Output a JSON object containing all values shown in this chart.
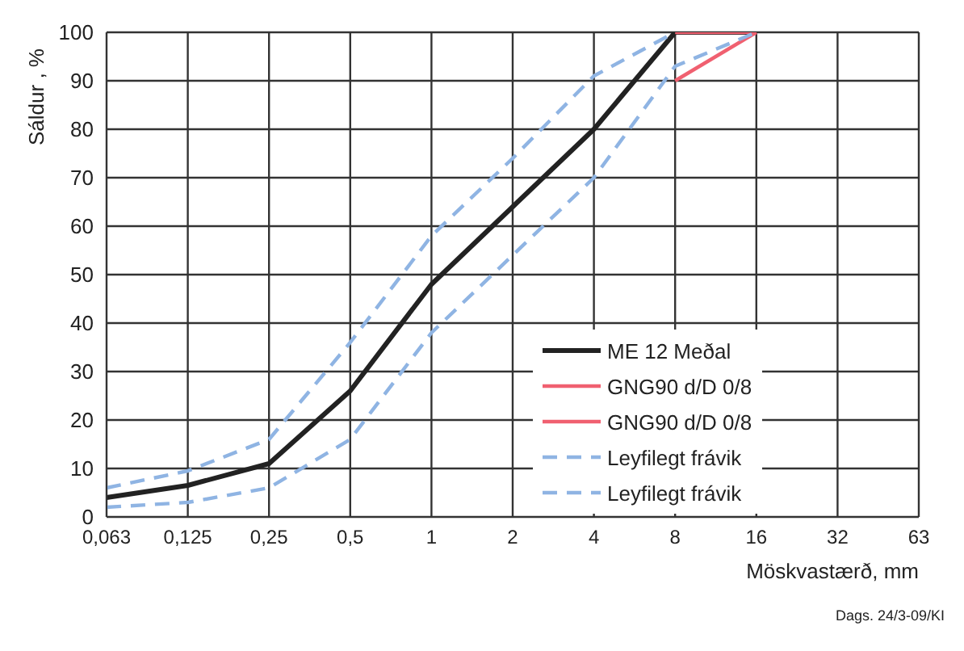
{
  "chart_data": {
    "type": "line",
    "xlabel": "Möskvastærð, mm",
    "ylabel": "Sáldur , %",
    "categories": [
      "0,063",
      "0,125",
      "0,25",
      "0,5",
      "1",
      "2",
      "4",
      "8",
      "16",
      "32",
      "63"
    ],
    "series": [
      {
        "name": "ME 12 Meðal",
        "color": "#222222",
        "values": [
          4,
          6.5,
          11,
          26,
          48,
          64,
          80,
          100,
          100,
          null,
          null
        ]
      },
      {
        "name": "GNG90  d/D 0/8",
        "color": "#f06070",
        "values": [
          null,
          null,
          null,
          null,
          null,
          null,
          null,
          90,
          100,
          null,
          null
        ]
      },
      {
        "name": "GNG90  d/D 0/8",
        "color": "#f06070",
        "values": [
          null,
          null,
          null,
          null,
          null,
          null,
          null,
          100,
          100,
          null,
          null
        ]
      },
      {
        "name": "Leyfilegt frávik",
        "color": "#8fb4e3",
        "line_style": "dashed",
        "values": [
          6,
          9.5,
          16,
          36,
          58,
          74,
          91,
          100,
          null,
          null,
          null
        ]
      },
      {
        "name": "Leyfilegt frávik",
        "color": "#8fb4e3",
        "line_style": "dashed",
        "values": [
          2,
          3,
          6,
          16,
          38,
          54,
          70,
          93,
          100,
          null,
          null
        ]
      }
    ],
    "ylim": [
      0,
      100
    ],
    "yticks": [
      0,
      10,
      20,
      30,
      40,
      50,
      60,
      70,
      80,
      90,
      100
    ],
    "grid": true,
    "legend": "right",
    "marker": "none",
    "annotations": [
      "Dags. 24/3-09/KI"
    ]
  }
}
